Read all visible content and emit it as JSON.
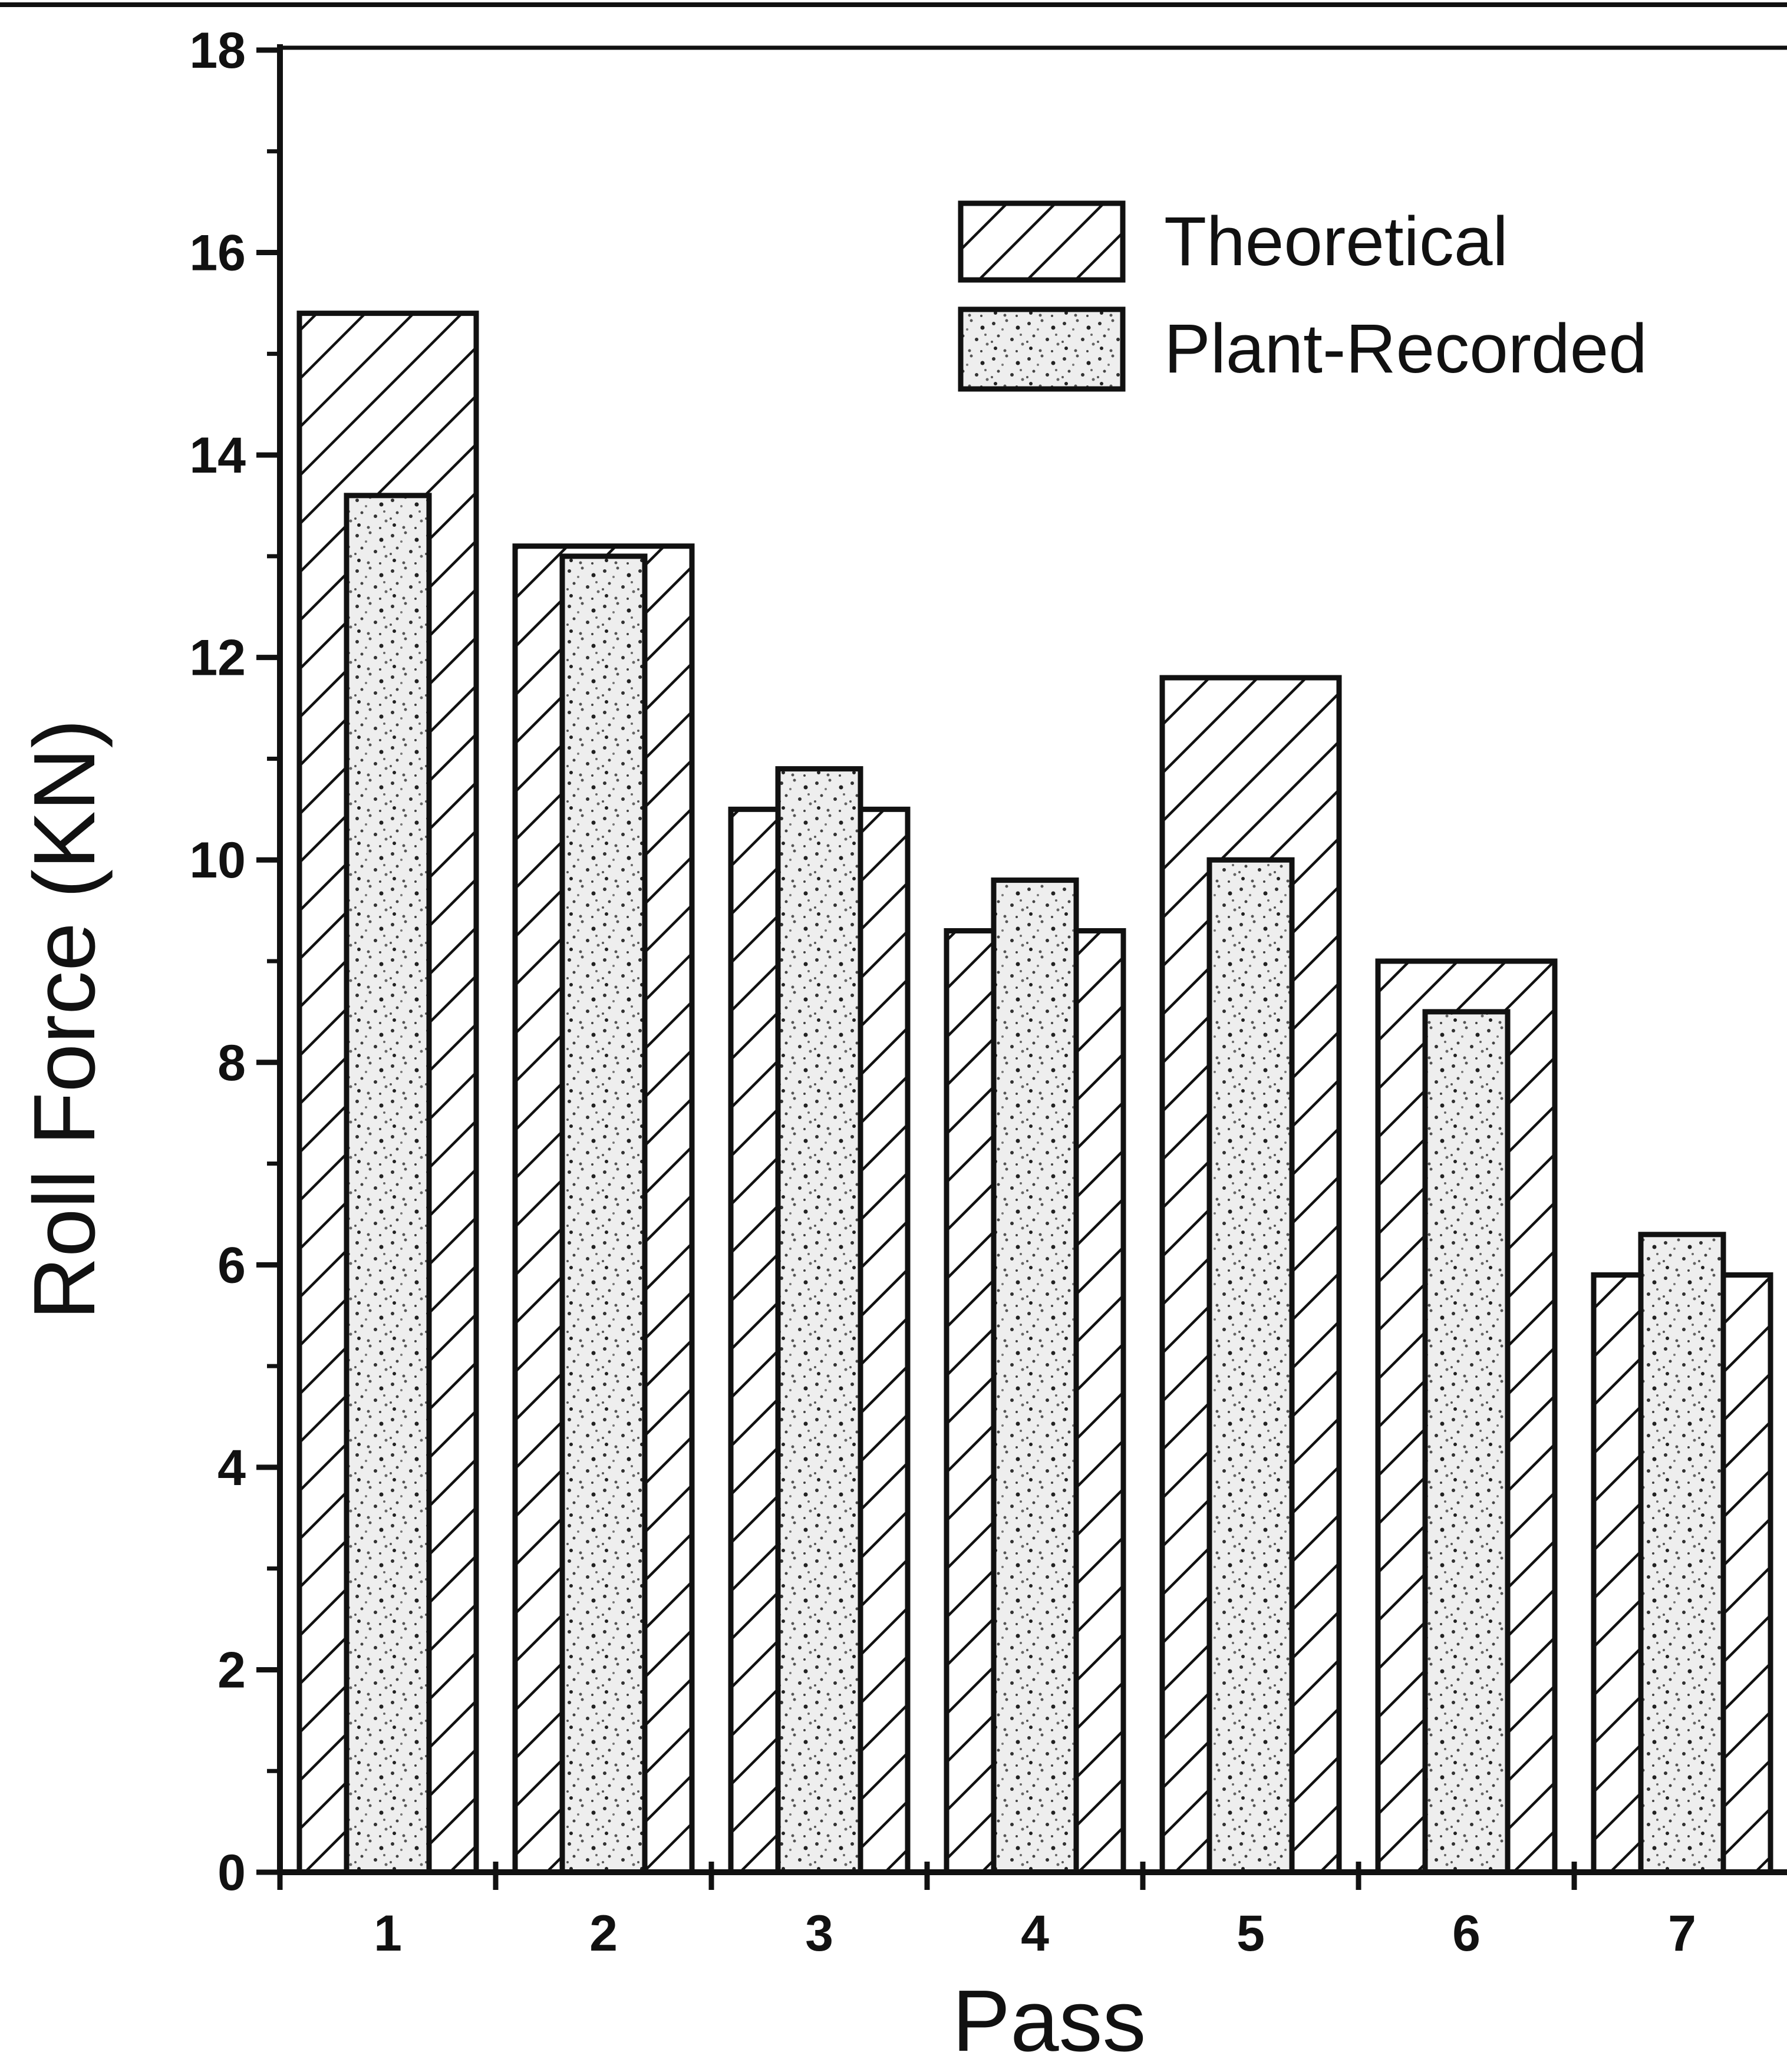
{
  "chart_data": {
    "type": "bar",
    "categories": [
      "1",
      "2",
      "3",
      "4",
      "5",
      "6",
      "7"
    ],
    "series": [
      {
        "name": "Theoretical",
        "pattern": "diagonal-hatch",
        "values": [
          15.4,
          13.1,
          10.5,
          9.3,
          11.8,
          9.0,
          5.9
        ]
      },
      {
        "name": "Plant-Recorded",
        "pattern": "stipple",
        "values": [
          13.6,
          13.0,
          10.9,
          9.8,
          10.0,
          8.5,
          6.3
        ]
      }
    ],
    "xlabel": "Pass",
    "ylabel": "Roll Force (KN)",
    "ylim": [
      0,
      18
    ],
    "yticks": [
      "0",
      "2",
      "4",
      "6",
      "8",
      "10",
      "12",
      "14",
      "16",
      "18"
    ],
    "grid": false,
    "legend_position": "top-right",
    "colors": {
      "ink": "#111111",
      "background": "#ffffff",
      "stipple_fill": "#eeeeee"
    }
  }
}
